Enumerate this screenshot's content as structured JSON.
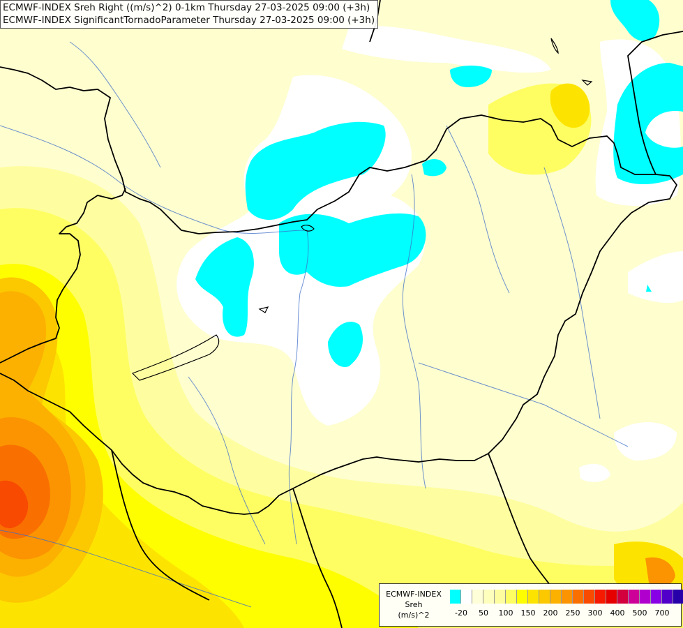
{
  "title_lines": [
    "ECMWF-INDEX Sreh Right ((m/s)^2) 0-1km Thursday 27-03-2025 09:00 (+3h)",
    "ECMWF-INDEX SignificantTornadoParameter Thursday 27-03-2025 09:00 (+3h)"
  ],
  "legend": {
    "model": "ECMWF-INDEX",
    "parameter": "Sreh",
    "unit": "(m/s)^2",
    "colors": [
      "#00ffff",
      "#ffffff",
      "#fefed8",
      "#fefebd",
      "#fefea0",
      "#fefe63",
      "#fefe00",
      "#fde400",
      "#fcc800",
      "#fcb000",
      "#fb9400",
      "#f97000",
      "#f84a00",
      "#f61a00",
      "#e60000",
      "#d2003c",
      "#cd0098",
      "#b000cd",
      "#8800e6",
      "#5000c8",
      "#2800aa",
      "#00006e"
    ],
    "labels": [
      "-20",
      "50",
      "100",
      "150",
      "200",
      "250",
      "300",
      "400",
      "500",
      "700"
    ]
  },
  "colors": {
    "background": "#fefecf",
    "cyan": "#00ffff",
    "white": "#ffffff",
    "pale_yellow": "#fefebd",
    "yellow": "#fefe63",
    "bright_yellow": "#fefe00",
    "gold": "#fde400",
    "orange": "#fcb000",
    "dark_orange": "#fb9400",
    "red_orange": "#f84a00",
    "border": "#000000",
    "river": "#3c6cc8"
  }
}
